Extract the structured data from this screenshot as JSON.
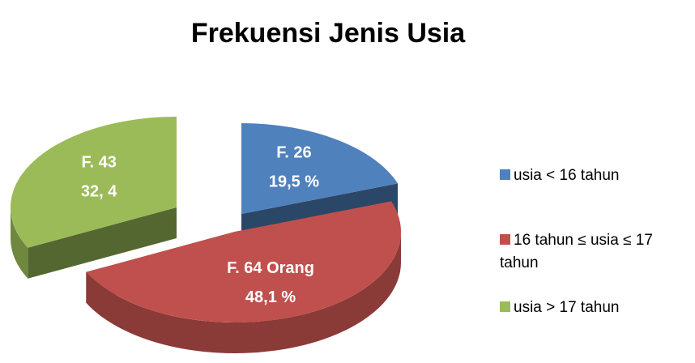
{
  "chart_data": {
    "type": "pie",
    "title": "Frekuensi Jenis Usia",
    "categories": [
      "usia < 16 tahun",
      "16 tahun ≤ usia ≤ 17 tahun",
      "usia > 17 tahun"
    ],
    "values": [
      26,
      64,
      43
    ],
    "value_labels": [
      "F. 26",
      "F. 64 Orang",
      "F. 43"
    ],
    "percentage_labels": [
      "19,5 %",
      "48,1 %",
      "32, 4"
    ],
    "colors": [
      "#4f81bd",
      "#c0504d",
      "#9bbb59"
    ],
    "legend": "right"
  }
}
